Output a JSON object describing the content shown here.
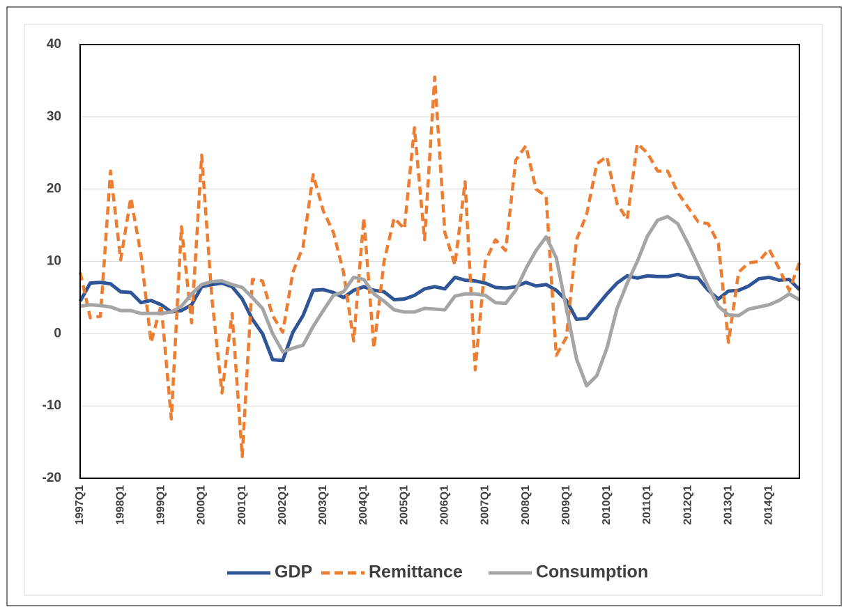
{
  "chart_data": {
    "type": "line",
    "categories": [
      "1997Q1",
      null,
      null,
      null,
      "1998Q1",
      null,
      null,
      null,
      "1999Q1",
      null,
      null,
      null,
      "2000Q1",
      null,
      null,
      null,
      "2001Q1",
      null,
      null,
      null,
      "2002Q1",
      null,
      null,
      null,
      "2003Q1",
      null,
      null,
      null,
      "2004Q1",
      null,
      null,
      null,
      "2005Q1",
      null,
      null,
      null,
      "2006Q1",
      null,
      null,
      null,
      "2007Q1",
      null,
      null,
      null,
      "2008Q1",
      null,
      null,
      null,
      "2009Q1",
      null,
      null,
      null,
      "2010Q1",
      null,
      null,
      null,
      "2011Q1",
      null,
      null,
      null,
      "2012Q1",
      null,
      null,
      null,
      "2013Q1",
      null,
      null,
      null,
      "2014Q1",
      null,
      null,
      null
    ],
    "series": [
      {
        "name": "GDP",
        "color": "#2f5597",
        "dashed": false,
        "values": [
          4.5,
          7.0,
          7.1,
          6.9,
          5.8,
          5.7,
          4.3,
          4.6,
          4.0,
          3.0,
          3.2,
          4.0,
          6.5,
          6.8,
          7.0,
          6.5,
          4.8,
          2.0,
          0,
          -3.6,
          -3.7,
          0.2,
          2.5,
          6.0,
          6.1,
          5.7,
          5.0,
          6.0,
          6.5,
          6.0,
          5.8,
          4.7,
          4.8,
          5.3,
          6.2,
          6.5,
          6.2,
          7.8,
          7.4,
          7.3,
          7.0,
          6.4,
          6.3,
          6.5,
          7.1,
          6.6,
          6.8,
          6.0,
          4.6,
          2.0,
          2.1,
          3.8,
          5.5,
          7.0,
          8.0,
          7.7,
          8.0,
          7.9,
          7.9,
          8.2,
          7.8,
          7.7,
          6.0,
          4.8,
          5.9,
          6.0,
          6.6,
          7.6,
          7.8,
          7.4,
          7.5,
          6.1
        ]
      },
      {
        "name": "Remittance",
        "color": "#ed7d31",
        "dashed": true,
        "values": [
          8.5,
          2.2,
          2.4,
          22.5,
          10.2,
          18.8,
          11,
          -1.2,
          4.0,
          -11.8,
          14.8,
          1.5,
          24.7,
          5,
          -8.2,
          2.8,
          -17,
          7.5,
          7.3,
          2.5,
          0.2,
          8.5,
          12,
          22,
          17,
          14,
          8.5,
          -1.0,
          16.0,
          -2.0,
          10,
          16,
          14.5,
          28.5,
          13,
          35.5,
          14,
          9.5,
          21,
          -5,
          10,
          13,
          11.5,
          24,
          26,
          20,
          19,
          -3,
          -0.5,
          13,
          16.5,
          23.5,
          24.5,
          18,
          15.8,
          26.3,
          25,
          22.5,
          22.5,
          19.5,
          17.5,
          15.5,
          15.2,
          12.5,
          -1.2,
          8.5,
          9.8,
          10,
          11.7,
          9,
          6,
          9.8
        ]
      },
      {
        "name": "Consumption",
        "color": "#a5a5a5",
        "dashed": false,
        "values": [
          3.8,
          4.0,
          3.9,
          3.7,
          3.2,
          3.2,
          2.8,
          2.8,
          2.8,
          3.0,
          3.8,
          5.5,
          6.8,
          7.2,
          7.3,
          6.8,
          6.4,
          5.0,
          3.5,
          0,
          -2.5,
          -2.0,
          -1.6,
          1.0,
          3.2,
          5.3,
          5.8,
          7.8,
          7.5,
          5.5,
          4.5,
          3.3,
          3.0,
          3.0,
          3.5,
          3.4,
          3.3,
          5.2,
          5.5,
          5.5,
          5.3,
          4.3,
          4.2,
          6.0,
          9.0,
          11.5,
          13.4,
          10.5,
          3.5,
          -3.5,
          -7.2,
          -5.8,
          -2.0,
          3.5,
          7.0,
          10,
          13.5,
          15.7,
          16.2,
          15.2,
          12.5,
          9.5,
          6.5,
          3.8,
          2.6,
          2.5,
          3.4,
          3.7,
          4.0,
          4.6,
          5.5,
          4.7
        ]
      }
    ],
    "ylim": [
      -20,
      40
    ],
    "yticks": [
      -20,
      -10,
      0,
      10,
      20,
      30,
      40
    ],
    "grid": true,
    "legend": "bottom"
  }
}
